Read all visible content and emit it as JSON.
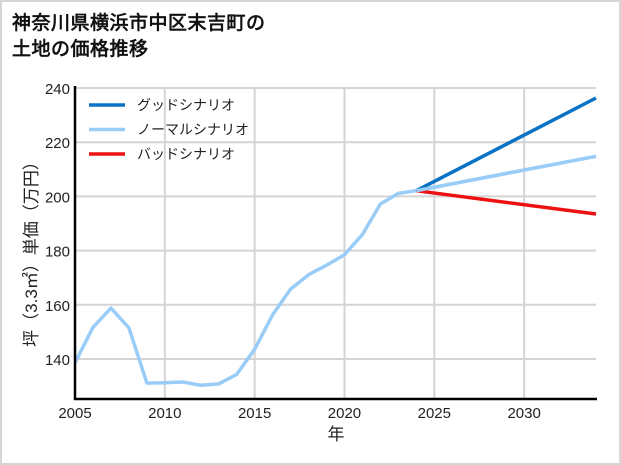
{
  "title": "神奈川県横浜市中区末吉町の\n土地の価格推移",
  "chart_data": {
    "type": "line",
    "title": "神奈川県横浜市中区末吉町の土地の価格推移",
    "xlabel": "年",
    "ylabel": "坪（3.3㎡）単価（万円）",
    "xlim": [
      2005,
      2034
    ],
    "ylim": [
      125,
      241
    ],
    "x_ticks": [
      2005,
      2010,
      2015,
      2020,
      2025,
      2030
    ],
    "y_ticks": [
      140,
      160,
      180,
      200,
      220,
      240
    ],
    "grid": true,
    "legend_position": "upper left",
    "series": [
      {
        "name": "グッドシナリオ",
        "color": "#0a72c4",
        "x": [
          2024,
          2034
        ],
        "values": [
          202.1,
          236.3
        ]
      },
      {
        "name": "ノーマルシナリオ",
        "color": "#99ccf7",
        "x": [
          2005,
          2006,
          2007,
          2008,
          2009,
          2010,
          2011,
          2012,
          2013,
          2014,
          2015,
          2016,
          2017,
          2018,
          2019,
          2020,
          2021,
          2022,
          2023,
          2024,
          2034
        ],
        "values": [
          138.6,
          151.7,
          158.8,
          151.5,
          131.1,
          131.2,
          131.5,
          130.3,
          130.8,
          134.3,
          143.6,
          156.3,
          165.8,
          171.1,
          174.6,
          178.5,
          185.9,
          197.2,
          201.1,
          202.1,
          214.8
        ]
      },
      {
        "name": "バッドシナリオ",
        "color": "#ee1111",
        "x": [
          2024,
          2034
        ],
        "values": [
          202.1,
          193.5
        ]
      }
    ]
  },
  "legend": [
    {
      "label": "グッドシナリオ",
      "color": "#0a72c4"
    },
    {
      "label": "ノーマルシナリオ",
      "color": "#99ccf7"
    },
    {
      "label": "バッドシナリオ",
      "color": "#ee1111"
    }
  ],
  "axes": {
    "xlabel": "年",
    "ylabel": "坪（3.3㎡）単価（万円）"
  }
}
